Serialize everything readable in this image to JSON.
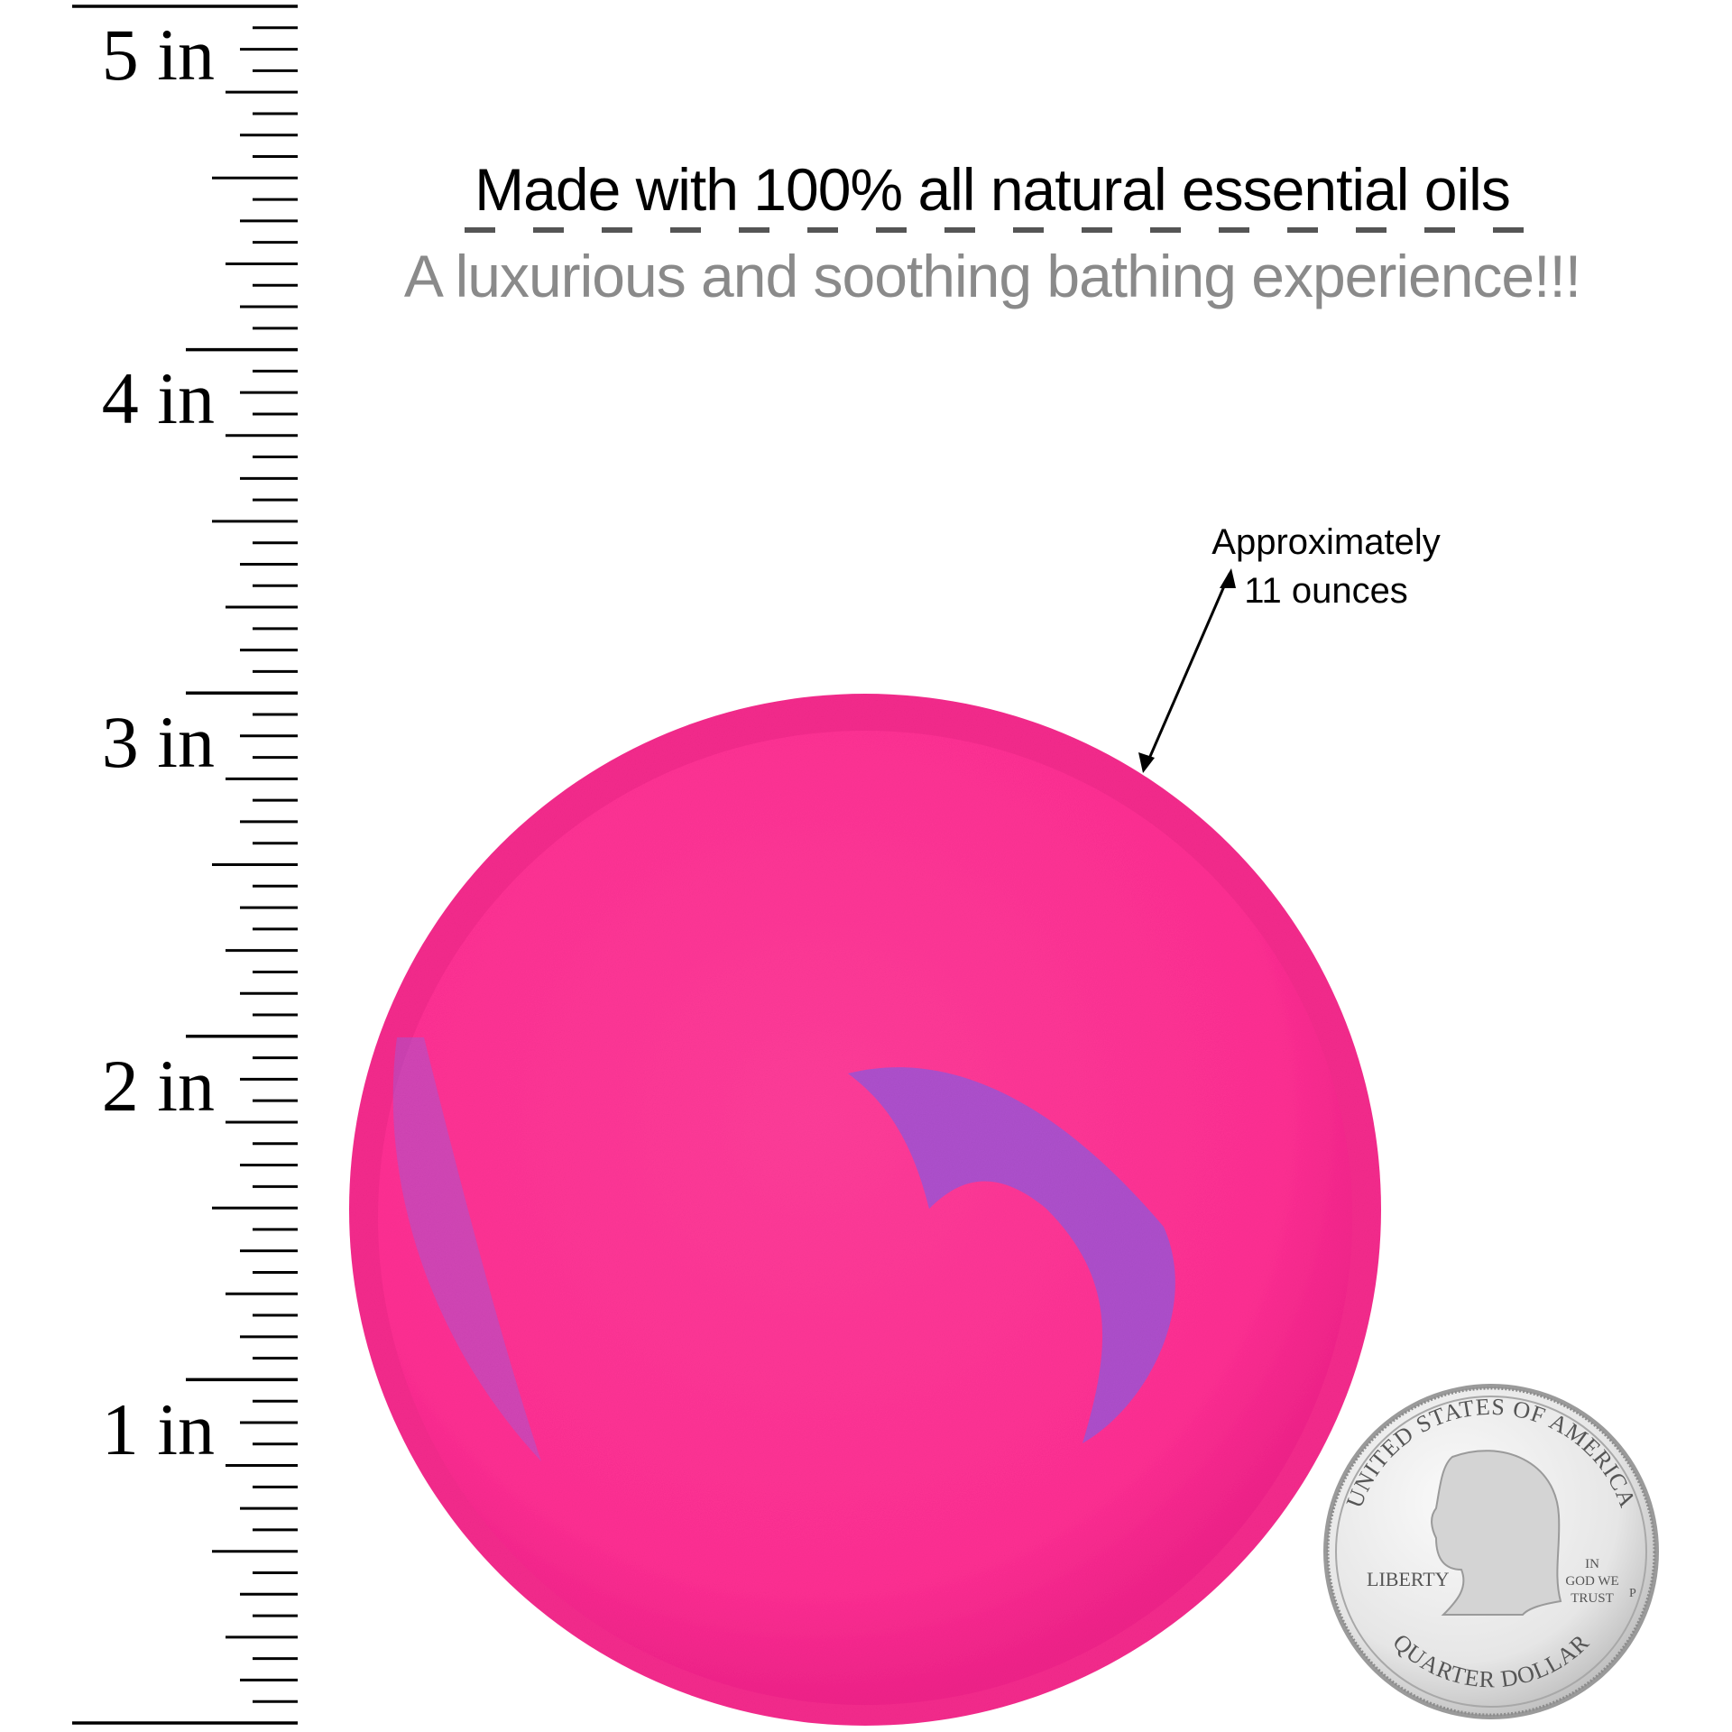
{
  "ruler": {
    "unit": "in",
    "labels": [
      "5 in",
      "4 in",
      "3 in",
      "2 in",
      "1 in"
    ],
    "ticks_per_inch": 16
  },
  "headline": "Made with 100% all natural essential oils",
  "subline": "A luxurious and soothing bathing experience!!!",
  "annotation": {
    "line1": "Approximately",
    "line2": "11 ounces"
  },
  "product": {
    "name_colors": {
      "pink": "#ff2f93",
      "purple": "#9a55d8"
    }
  },
  "coin": {
    "top_text": "UNITED STATES OF AMERICA",
    "left_text": "LIBERTY",
    "motto": [
      "IN",
      "GOD WE",
      "TRUST"
    ],
    "bottom_text": "QUARTER DOLLAR",
    "mint": "P"
  }
}
